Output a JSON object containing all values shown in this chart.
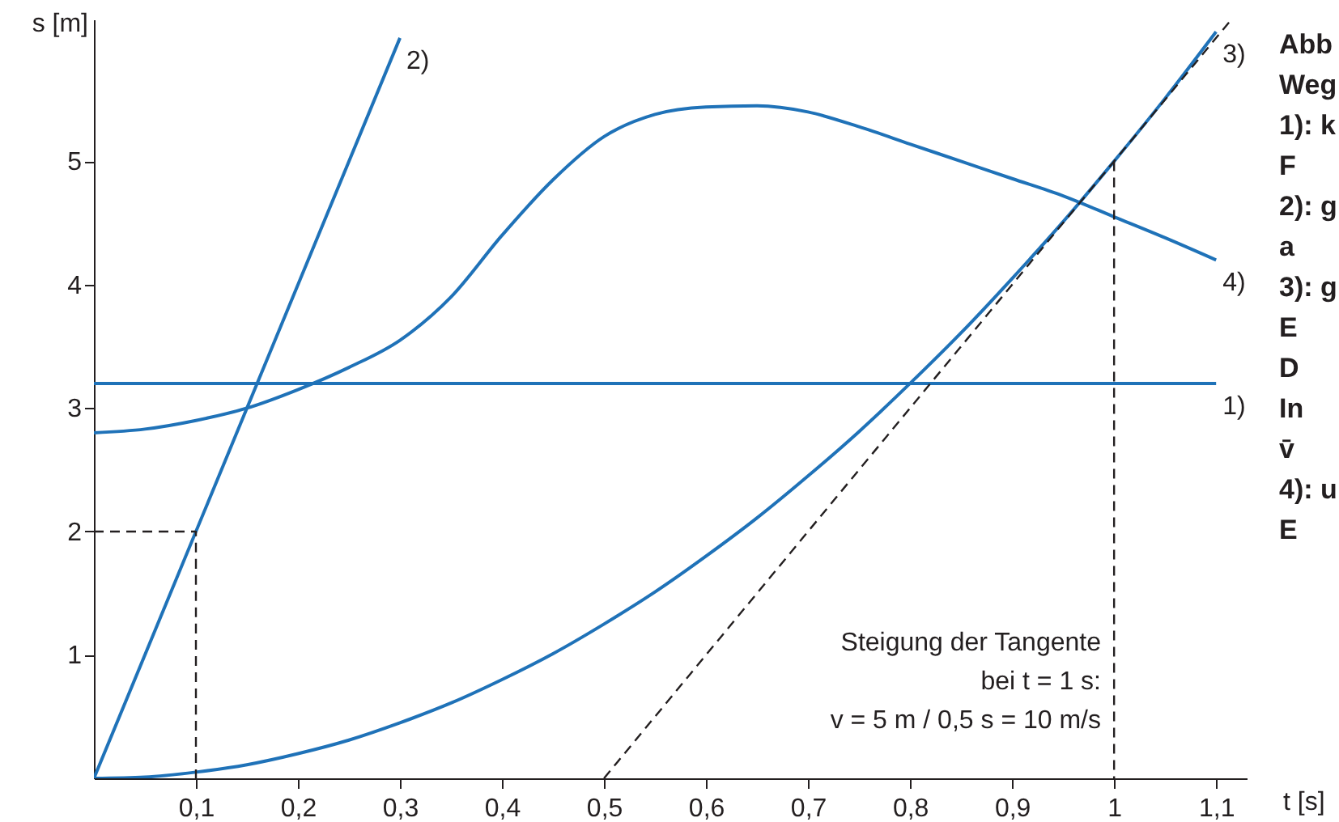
{
  "chart_data": {
    "type": "line",
    "xlabel": "t [s]",
    "ylabel": "s [m]",
    "xlim": [
      0,
      1.13
    ],
    "ylim": [
      0,
      6.15
    ],
    "xticks": [
      {
        "value": 0.1,
        "label": "0,1"
      },
      {
        "value": 0.2,
        "label": "0,2"
      },
      {
        "value": 0.3,
        "label": "0,3"
      },
      {
        "value": 0.4,
        "label": "0,4"
      },
      {
        "value": 0.5,
        "label": "0,5"
      },
      {
        "value": 0.6,
        "label": "0,6"
      },
      {
        "value": 0.7,
        "label": "0,7"
      },
      {
        "value": 0.8,
        "label": "0,8"
      },
      {
        "value": 0.9,
        "label": "0,9"
      },
      {
        "value": 1,
        "label": "1"
      },
      {
        "value": 1.1,
        "label": "1,1"
      }
    ],
    "yticks": [
      1,
      2,
      3,
      4,
      5
    ],
    "grid": false,
    "marker": "none",
    "series": [
      {
        "name": "1)",
        "color": "#1f72b8",
        "x": [
          0,
          1.1
        ],
        "values": [
          3.2,
          3.2
        ]
      },
      {
        "name": "2)",
        "color": "#1f72b8",
        "x": [
          0,
          0.3
        ],
        "values": [
          0,
          6.0
        ]
      },
      {
        "name": "3)",
        "color": "#1f72b8",
        "x": [
          0,
          0.05,
          0.1,
          0.15,
          0.2,
          0.25,
          0.3,
          0.35,
          0.4,
          0.45,
          0.5,
          0.55,
          0.6,
          0.65,
          0.7,
          0.75,
          0.8,
          0.85,
          0.9,
          0.95,
          1.0,
          1.05,
          1.1
        ],
        "values": [
          0,
          0.01,
          0.05,
          0.11,
          0.2,
          0.31,
          0.45,
          0.61,
          0.8,
          1.01,
          1.25,
          1.51,
          1.8,
          2.11,
          2.45,
          2.81,
          3.2,
          3.61,
          4.05,
          4.51,
          5.0,
          5.51,
          6.05
        ]
      },
      {
        "name": "4)",
        "color": "#1f72b8",
        "x": [
          0,
          0.05,
          0.1,
          0.15,
          0.2,
          0.25,
          0.3,
          0.35,
          0.4,
          0.45,
          0.5,
          0.55,
          0.6,
          0.65,
          0.7,
          0.75,
          0.8,
          0.85,
          0.9,
          0.95,
          1.0,
          1.05,
          1.1
        ],
        "values": [
          2.8,
          2.83,
          2.9,
          3.0,
          3.15,
          3.33,
          3.55,
          3.9,
          4.4,
          4.85,
          5.2,
          5.38,
          5.44,
          5.45,
          5.4,
          5.28,
          5.14,
          5.0,
          4.86,
          4.72,
          4.55,
          4.38,
          4.2
        ]
      },
      {
        "color": "#231f20",
        "line_style": "dashed",
        "x": [
          0.5,
          1.115
        ],
        "values": [
          0,
          6.15
        ]
      },
      {
        "color": "#231f20",
        "line_style": "dashed",
        "x": [
          0,
          0.1,
          0.1
        ],
        "values": [
          2,
          2,
          0
        ]
      },
      {
        "color": "#231f20",
        "line_style": "dashed",
        "x": [
          1,
          1
        ],
        "values": [
          5,
          0
        ]
      }
    ],
    "annotations": [
      "Steigung der Tangente",
      "bei t = 1 s:",
      "v = 5 m / 0,5 s = 10 m/s",
      "Abb",
      "Weg",
      "1): k",
      "F",
      "2): g",
      "a",
      "3): g",
      "E",
      "D",
      "In",
      "v̄",
      "4): u",
      "E"
    ]
  }
}
